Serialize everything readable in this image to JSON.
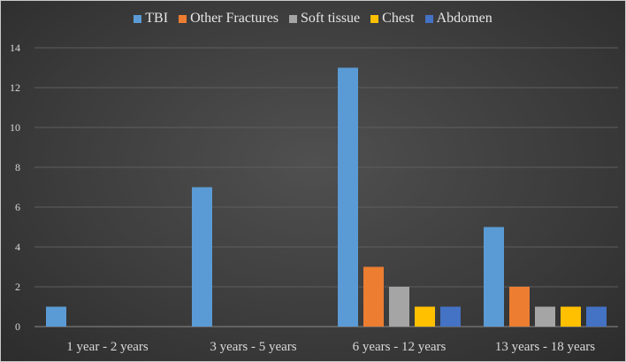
{
  "chart_data": {
    "type": "bar",
    "title": "",
    "xlabel": "",
    "ylabel": "",
    "ylim": [
      0,
      14
    ],
    "yticks": [
      0,
      2,
      4,
      6,
      8,
      10,
      12,
      14
    ],
    "grid": true,
    "legend_position": "top",
    "categories": [
      "1 year - 2 years",
      "3 years - 5 years",
      "6 years - 12 years",
      "13 years - 18 years"
    ],
    "series": [
      {
        "name": "TBI",
        "color": "#5b9bd5",
        "values": [
          1,
          7,
          13,
          5
        ]
      },
      {
        "name": "Other Fractures",
        "color": "#ed7d31",
        "values": [
          0,
          0,
          3,
          2
        ]
      },
      {
        "name": "Soft tissue",
        "color": "#a5a5a5",
        "values": [
          0,
          0,
          2,
          1
        ]
      },
      {
        "name": "Chest",
        "color": "#ffc000",
        "values": [
          0,
          0,
          1,
          1
        ]
      },
      {
        "name": "Abdomen",
        "color": "#4472c4",
        "values": [
          0,
          0,
          1,
          1
        ]
      }
    ]
  }
}
